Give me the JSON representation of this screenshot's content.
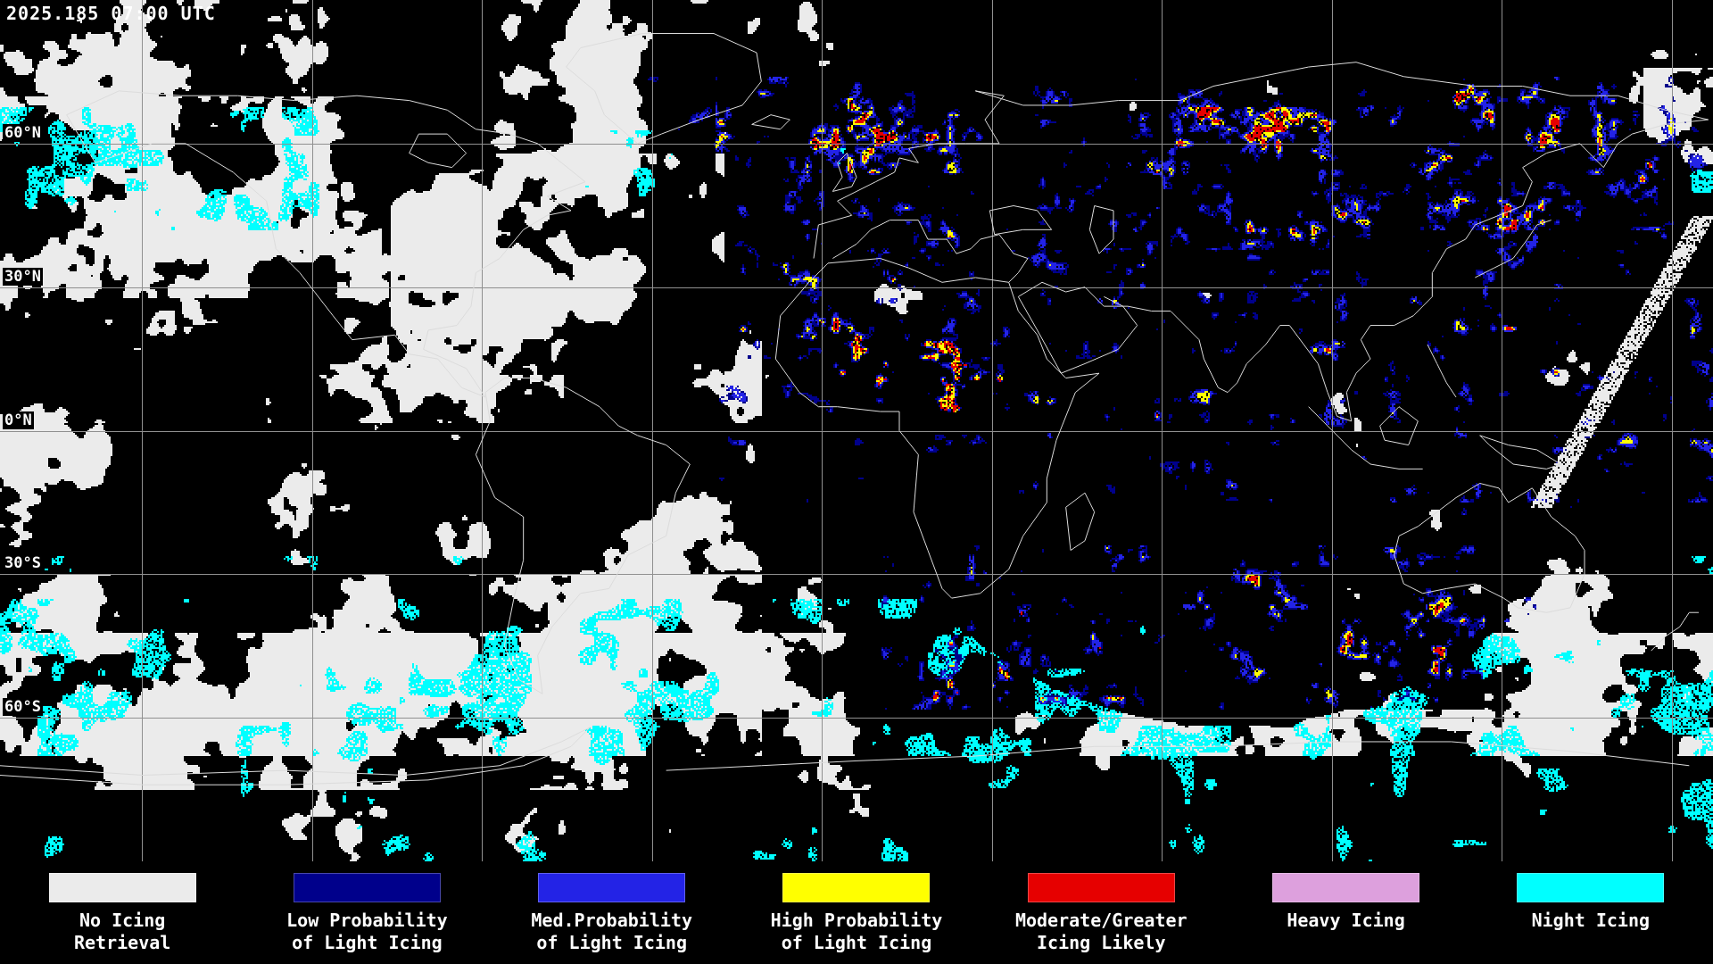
{
  "header": {
    "timestamp": "2025.185 07:00 UTC"
  },
  "map": {
    "latitude_labels": [
      {
        "text": "60°N",
        "lat": 60
      },
      {
        "text": "30°N",
        "lat": 30
      },
      {
        "text": "0°N",
        "lat": 0
      },
      {
        "text": "30°S",
        "lat": -30
      },
      {
        "text": "60°S",
        "lat": -60
      }
    ],
    "colors": {
      "background": "#000000",
      "graticule": "#909090",
      "coastline": "#dcdcdc",
      "label_text": "#ffffff"
    }
  },
  "legend": {
    "items": [
      {
        "name": "no-icing-retrieval",
        "lines": [
          "No Icing",
          "Retrieval"
        ],
        "color": "#ebebeb"
      },
      {
        "name": "low-prob-light-icing",
        "lines": [
          "Low Probability",
          "of Light Icing"
        ],
        "color": "#00008b"
      },
      {
        "name": "med-prob-light-icing",
        "lines": [
          "Med.Probability",
          "of Light Icing"
        ],
        "color": "#2323e6"
      },
      {
        "name": "high-prob-light-icing",
        "lines": [
          "High Probability",
          "of Light Icing"
        ],
        "color": "#ffff00"
      },
      {
        "name": "moderate-greater-icing",
        "lines": [
          "Moderate/Greater",
          "Icing Likely"
        ],
        "color": "#e60000"
      },
      {
        "name": "heavy-icing",
        "lines": [
          "Heavy Icing"
        ],
        "color": "#dda0dd"
      },
      {
        "name": "night-icing",
        "lines": [
          "Night Icing"
        ],
        "color": "#00ffff"
      }
    ]
  }
}
